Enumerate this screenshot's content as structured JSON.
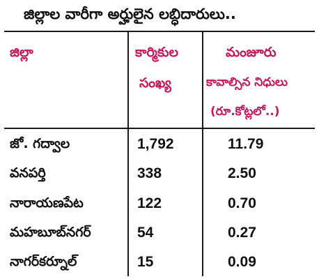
{
  "title": "జిల్లాల వారీగా అర్హులైన లబ్ధిదారులు..",
  "colors": {
    "header_text": "#c2185b",
    "body_text": "#111111",
    "rule": "#1a1a1a"
  },
  "table": {
    "headers": {
      "district": "జిల్లా",
      "workers_line1": "కార్మికుల",
      "workers_line2": "సంఖ్య",
      "funds_line1": "మంజూరు",
      "funds_line2": "కావాల్సిన నిధులు",
      "funds_line3": "(రూ.కోట్లలో..)"
    },
    "rows": [
      {
        "district": "జో. గద్వాల",
        "workers": "1,792",
        "funds": "11.79"
      },
      {
        "district": "వనపర్తి",
        "workers": "338",
        "funds": "2.50"
      },
      {
        "district": "నారాయణపేట",
        "workers": "122",
        "funds": "0.70"
      },
      {
        "district": "మహబూబ్‌నగర్",
        "workers": "54",
        "funds": "0.27"
      },
      {
        "district": "నాగర్‌కర్నూల్",
        "workers": "15",
        "funds": "0.09"
      }
    ]
  }
}
